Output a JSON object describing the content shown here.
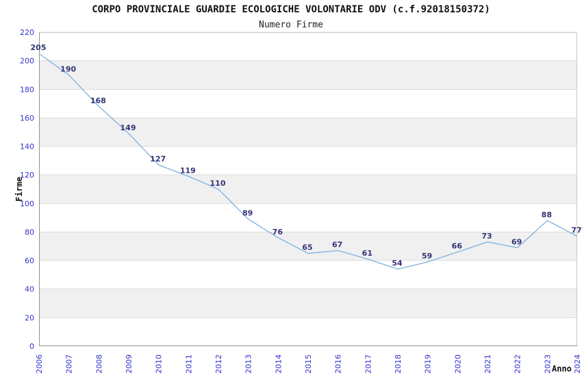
{
  "chart_data": {
    "type": "line",
    "title": "CORPO PROVINCIALE GUARDIE ECOLOGICHE VOLONTARIE ODV (c.f.92018150372)",
    "subtitle": "Numero Firme",
    "xlabel": "Anno",
    "ylabel": "Firme",
    "categories": [
      "2006",
      "2007",
      "2008",
      "2009",
      "2010",
      "2011",
      "2012",
      "2013",
      "2014",
      "2015",
      "2016",
      "2017",
      "2018",
      "2019",
      "2020",
      "2021",
      "2022",
      "2023",
      "2024"
    ],
    "values": [
      205,
      190,
      168,
      149,
      127,
      119,
      110,
      89,
      76,
      65,
      67,
      61,
      54,
      59,
      66,
      73,
      69,
      88,
      77
    ],
    "ylim": [
      0,
      220
    ],
    "ytick_step": 20,
    "grid": "horizontal-bands",
    "legend_position": "none",
    "data_labels": true,
    "colors": {
      "line": "#7cb0e2",
      "band": "#f0f0f0",
      "gridline": "#dcdcdc",
      "frame": "#c8c8c8",
      "axis": "#919191",
      "tick_label": "#3333cc",
      "point_label": "#333377",
      "title_text": "#111111"
    }
  }
}
